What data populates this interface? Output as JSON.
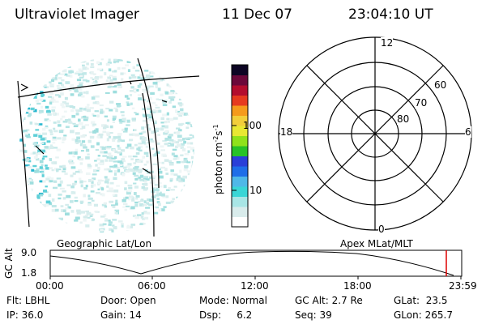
{
  "header": {
    "instrument": "Ultraviolet Imager",
    "date": "11 Dec 07",
    "time": "23:04:10 UT"
  },
  "left_panel": {
    "label": "Geographic Lat/Lon"
  },
  "right_panel": {
    "label": "Apex MLat/MLT",
    "hour_labels": {
      "top": "12",
      "left": "18",
      "right": "6",
      "bottom": "0"
    },
    "lat_labels": [
      "60",
      "70",
      "80"
    ]
  },
  "colorbar": {
    "unit_label": "photon cm",
    "unit_exp1": "-2",
    "unit_s": "s",
    "unit_exp2": "-1",
    "ticks": [
      {
        "label": "100",
        "value": 100
      },
      {
        "label": "10",
        "value": 10
      }
    ],
    "colors": [
      "#ffffff",
      "#d9ecec",
      "#a8e6e6",
      "#39d6d6",
      "#4fb8e8",
      "#1f6ee8",
      "#2a3fd8",
      "#27c227",
      "#8fe21a",
      "#e8e832",
      "#f2ce3a",
      "#f59a1c",
      "#e63a1f",
      "#b30d2e",
      "#6b083a",
      "#0d0524"
    ]
  },
  "altitude_plot": {
    "ylabel": "GC Alt",
    "yticks": [
      "9.0",
      "1.8"
    ],
    "xticks": [
      "00:00",
      "06:00",
      "12:00",
      "18:00",
      "23:59"
    ],
    "marker_color": "#dd0000"
  },
  "info": {
    "flt_label": "Flt:",
    "flt_value": "LBHL",
    "door_label": "Door:",
    "door_value": "Open",
    "mode_label": "Mode:",
    "mode_value": "Normal",
    "gcalt_label": "GC Alt:",
    "gcalt_value": "2.7 Re",
    "glat_label": "GLat:",
    "glat_value": "23.5",
    "ip_label": "IP:",
    "ip_value": "36.0",
    "gain_label": "Gain:",
    "gain_value": "14",
    "dsp_label": "Dsp:",
    "dsp_value": "6.2",
    "seq_label": "Seq:",
    "seq_value": "39",
    "glon_label": "GLon:",
    "glon_value": "265.7"
  }
}
